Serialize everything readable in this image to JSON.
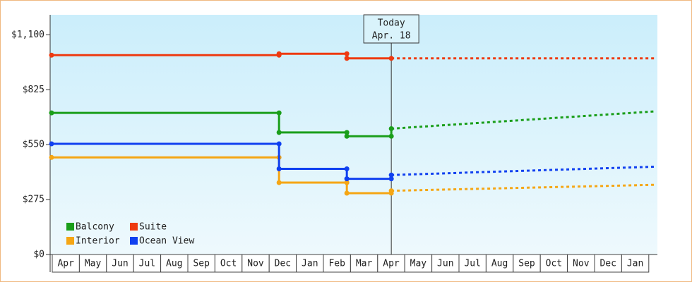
{
  "chart_data": {
    "type": "step-line",
    "categories": [
      "Apr",
      "May",
      "Jun",
      "Jul",
      "Aug",
      "Sep",
      "Oct",
      "Nov",
      "Dec",
      "Jan",
      "Feb",
      "Mar",
      "Apr",
      "May",
      "Jun",
      "Jul",
      "Aug",
      "Sep",
      "Oct",
      "Nov",
      "Dec",
      "Jan"
    ],
    "xlim": [
      0,
      22.4
    ],
    "ylim": [
      0,
      1200
    ],
    "yticks": [
      {
        "value": 0,
        "label": "$0"
      },
      {
        "value": 275,
        "label": "$275"
      },
      {
        "value": 550,
        "label": "$550"
      },
      {
        "value": 825,
        "label": "$825"
      },
      {
        "value": 1100,
        "label": "$1,100"
      }
    ],
    "today": {
      "label": [
        "Today",
        "Apr. 18"
      ],
      "x": 12.53
    },
    "series": [
      {
        "name": "Balcony",
        "color": "#1a9e1a",
        "x": [
          0,
          8.39,
          8.39,
          10.89,
          10.89,
          12.53,
          12.53
        ],
        "values": [
          709,
          709,
          611,
          611,
          592,
          592,
          630
        ],
        "forecast_x": [
          12.53,
          22.3
        ],
        "forecast_values": [
          630,
          717
        ]
      },
      {
        "name": "Suite",
        "color": "#ee3a10",
        "x": [
          0,
          8.39,
          8.39,
          10.89,
          10.89,
          12.53
        ],
        "values": [
          998,
          998,
          1005,
          1005,
          982,
          982
        ],
        "forecast_x": [
          12.53,
          22.3
        ],
        "forecast_values": [
          982,
          982
        ]
      },
      {
        "name": "Interior",
        "color": "#f5a614",
        "x": [
          0,
          8.39,
          8.39,
          10.89,
          10.89,
          12.53,
          12.53
        ],
        "values": [
          486,
          486,
          360,
          360,
          307,
          307,
          319
        ],
        "forecast_x": [
          12.53,
          22.3
        ],
        "forecast_values": [
          319,
          349
        ]
      },
      {
        "name": "Ocean View",
        "color": "#1040f0",
        "x": [
          0,
          8.39,
          8.39,
          10.89,
          10.89,
          12.53,
          12.53
        ],
        "values": [
          554,
          554,
          429,
          429,
          379,
          379,
          398
        ],
        "forecast_x": [
          12.53,
          22.3
        ],
        "forecast_values": [
          398,
          440
        ]
      }
    ]
  }
}
